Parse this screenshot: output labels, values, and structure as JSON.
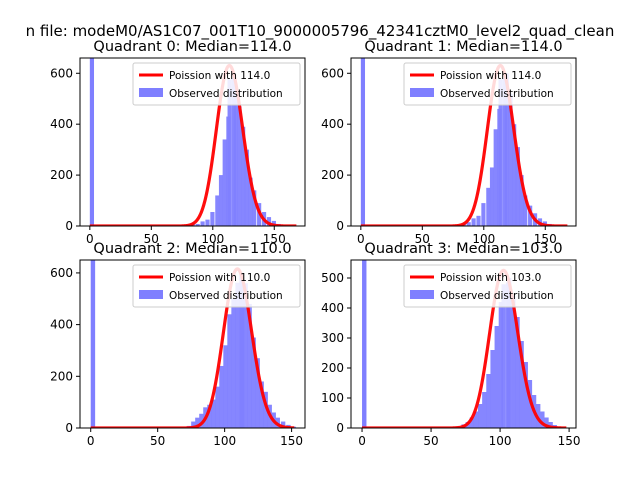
{
  "suptitle": "n file: modeM0/AS1C07_001T10_9000005796_42341cztM0_level2_quad_clean",
  "legend_observed": "Observed distribution",
  "colors": {
    "bar": "#7f7fff",
    "bar_edge": "#6a6af5",
    "curve": "#ff0000",
    "axis": "#000000"
  },
  "chart_data": [
    {
      "type": "bar",
      "title": "Quadrant 0: Median=114.0",
      "median": 114.0,
      "legend_poisson": "Poission with 114.0",
      "xlim": [
        -8,
        175
      ],
      "ylim": [
        0,
        660
      ],
      "xticks": [
        0,
        50,
        100,
        150
      ],
      "yticks": [
        0,
        200,
        400,
        600
      ],
      "bar_x_start": 0,
      "bar_width": 3.4,
      "zero_bin_value": 660,
      "poisson_peak": 630,
      "curve_xrange": [
        0,
        168
      ],
      "tail_bars": [
        [
          78,
          6
        ],
        [
          82,
          12
        ],
        [
          86,
          8
        ],
        [
          90,
          18
        ],
        [
          94,
          25
        ],
        [
          98,
          55
        ],
        [
          102,
          120
        ],
        [
          105,
          200
        ],
        [
          108,
          340
        ],
        [
          111,
          430
        ]
      ],
      "head_bars": [
        [
          117,
          520
        ],
        [
          120,
          470
        ],
        [
          123,
          390
        ],
        [
          126,
          300
        ],
        [
          129,
          190
        ],
        [
          132,
          140
        ],
        [
          136,
          90
        ],
        [
          140,
          55
        ],
        [
          144,
          35
        ],
        [
          148,
          20
        ],
        [
          152,
          8
        ],
        [
          156,
          4
        ]
      ]
    },
    {
      "type": "bar",
      "title": "Quadrant 1: Median=114.0",
      "median": 114.0,
      "legend_poisson": "Poission with 114.0",
      "xlim": [
        -8,
        175
      ],
      "ylim": [
        0,
        660
      ],
      "xticks": [
        0,
        50,
        100,
        150
      ],
      "yticks": [
        0,
        200,
        400,
        600
      ],
      "bar_x_start": 0,
      "bar_width": 3.4,
      "zero_bin_value": 660,
      "poisson_peak": 630,
      "curve_xrange": [
        0,
        168
      ],
      "tail_bars": [
        [
          78,
          4
        ],
        [
          82,
          10
        ],
        [
          86,
          15
        ],
        [
          90,
          30
        ],
        [
          94,
          40
        ],
        [
          98,
          90
        ],
        [
          102,
          150
        ],
        [
          105,
          230
        ],
        [
          108,
          380
        ],
        [
          111,
          460
        ]
      ],
      "head_bars": [
        [
          117,
          600
        ],
        [
          120,
          520
        ],
        [
          123,
          400
        ],
        [
          126,
          310
        ],
        [
          129,
          200
        ],
        [
          132,
          120
        ],
        [
          136,
          80
        ],
        [
          140,
          50
        ],
        [
          144,
          30
        ],
        [
          148,
          18
        ],
        [
          152,
          8
        ],
        [
          156,
          3
        ]
      ]
    },
    {
      "type": "bar",
      "title": "Quadrant 2: Median=110.0",
      "median": 110.0,
      "legend_poisson": "Poission with 110.0",
      "xlim": [
        -8,
        160
      ],
      "ylim": [
        0,
        650
      ],
      "xticks": [
        0,
        50,
        100,
        150
      ],
      "yticks": [
        0,
        200,
        400,
        600
      ],
      "bar_x_start": 0,
      "bar_width": 3.3,
      "zero_bin_value": 650,
      "poisson_peak": 615,
      "curve_xrange": [
        0,
        152
      ],
      "tail_bars": [
        [
          72,
          8
        ],
        [
          75,
          25
        ],
        [
          78,
          40
        ],
        [
          81,
          55
        ],
        [
          84,
          80
        ],
        [
          87,
          90
        ],
        [
          90,
          110
        ],
        [
          93,
          160
        ],
        [
          96,
          240
        ],
        [
          99,
          320
        ],
        [
          102,
          440
        ],
        [
          105,
          500
        ]
      ],
      "head_bars": [
        [
          111,
          600
        ],
        [
          114,
          560
        ],
        [
          117,
          480
        ],
        [
          120,
          350
        ],
        [
          123,
          270
        ],
        [
          126,
          180
        ],
        [
          129,
          140
        ],
        [
          132,
          90
        ],
        [
          135,
          60
        ],
        [
          138,
          40
        ],
        [
          142,
          25
        ],
        [
          146,
          12
        ],
        [
          150,
          5
        ]
      ]
    },
    {
      "type": "bar",
      "title": "Quadrant 3: Median=103.0",
      "median": 103.0,
      "legend_poisson": "Poission with 103.0",
      "xlim": [
        -8,
        155
      ],
      "ylim": [
        0,
        560
      ],
      "xticks": [
        0,
        50,
        100,
        150
      ],
      "yticks": [
        0,
        100,
        200,
        300,
        400,
        500
      ],
      "bar_x_start": 0,
      "bar_width": 3.2,
      "zero_bin_value": 560,
      "poisson_peak": 525,
      "curve_xrange": [
        0,
        148
      ],
      "tail_bars": [
        [
          68,
          5
        ],
        [
          72,
          12
        ],
        [
          75,
          20
        ],
        [
          78,
          35
        ],
        [
          81,
          55
        ],
        [
          84,
          80
        ],
        [
          87,
          120
        ],
        [
          90,
          180
        ],
        [
          93,
          260
        ],
        [
          96,
          340
        ],
        [
          99,
          420
        ]
      ],
      "head_bars": [
        [
          105,
          500
        ],
        [
          108,
          440
        ],
        [
          111,
          370
        ],
        [
          114,
          290
        ],
        [
          117,
          220
        ],
        [
          120,
          160
        ],
        [
          123,
          110
        ],
        [
          126,
          80
        ],
        [
          129,
          55
        ],
        [
          132,
          35
        ],
        [
          135,
          20
        ],
        [
          138,
          10
        ],
        [
          142,
          4
        ]
      ]
    }
  ]
}
